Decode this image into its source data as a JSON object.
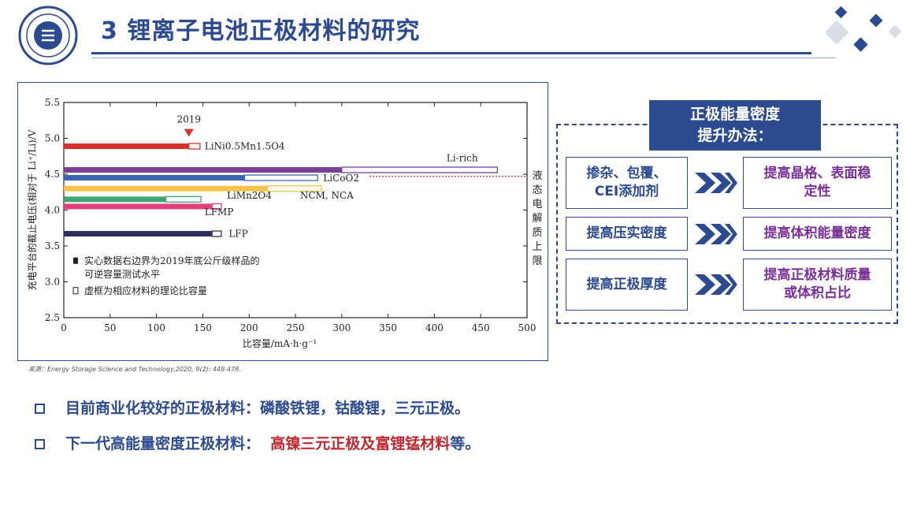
{
  "slide": {
    "title": "3 锂离子电池正极材料的研究",
    "source": "来源：Energy Storage Science and Technology,2020, 9(2): 448-478.",
    "bullets": [
      {
        "text": "目前商业化较好的正极材料：磷酸铁锂，钴酸锂，三元正极。",
        "highlight": ""
      },
      {
        "text": "下一代高能量密度正极材料：",
        "highlight": "高镍三元正极及富锂锰材料",
        "suffix": "等。"
      }
    ]
  },
  "panel": {
    "heading_line1": "正极能量密度",
    "heading_line2": "提升办法：",
    "rows": [
      {
        "left": [
          "掺杂、包覆、",
          "CEI添加剂"
        ],
        "right": [
          "提高晶格、表面稳",
          "定性"
        ]
      },
      {
        "left": [
          "提高压实密度"
        ],
        "right": [
          "提高体积能量密度"
        ]
      },
      {
        "left": [
          "提高正极厚度"
        ],
        "right": [
          "提高正极材料质量",
          "或体积占比"
        ]
      }
    ]
  },
  "chart_data": {
    "type": "bar",
    "orientation": "horizontal",
    "xlabel": "比容量/mA·h·g⁻¹",
    "ylabel": "充电平台的截止电压(相对于 Li⁺/Li)/V",
    "xlim": [
      0,
      500
    ],
    "ylim": [
      2.5,
      5.5
    ],
    "x_ticks": [
      0,
      50,
      100,
      150,
      200,
      250,
      300,
      350,
      400,
      450,
      500
    ],
    "y_ticks": [
      2.5,
      3.0,
      3.5,
      4.0,
      4.5,
      5.0,
      5.5
    ],
    "grid": false,
    "bars": [
      {
        "name": "LiNi0.5Mn1.5O4",
        "voltage": 4.89,
        "practical": 135,
        "theoretical": 147,
        "color": "#d7312f"
      },
      {
        "name": "Li-rich",
        "voltage": 4.56,
        "practical": 300,
        "theoretical": 468,
        "color": "#7b3f98"
      },
      {
        "name": "LiCoO2",
        "voltage": 4.45,
        "practical": 195,
        "theoretical": 274,
        "color": "#3a66b0"
      },
      {
        "name": "NCM, NCA",
        "voltage": 4.3,
        "practical": 220,
        "theoretical": 278,
        "color": "#f4c34a"
      },
      {
        "name": "LiMn2O4",
        "voltage": 4.15,
        "practical": 110,
        "theoretical": 148,
        "color": "#3fa672"
      },
      {
        "name": "LFMP",
        "voltage": 4.05,
        "practical": 160,
        "theoretical": 170,
        "color": "#e0407a"
      },
      {
        "name": "LFP",
        "voltage": 3.67,
        "practical": 160,
        "theoretical": 170,
        "color": "#2e2f5e"
      }
    ],
    "electrolyte_limit": 4.47,
    "electrolyte_limit_label": "液态电解质上限",
    "annotation": {
      "text": "2019",
      "x": 135,
      "y": 5.02
    },
    "legend": [
      {
        "marker": "filled",
        "lines": [
          "实心数据右边界为2019年底公斤级样品的",
          "可逆容量测试水平"
        ]
      },
      {
        "marker": "hollow",
        "lines": [
          "虚框为相应材料的理论比容量"
        ]
      }
    ]
  }
}
